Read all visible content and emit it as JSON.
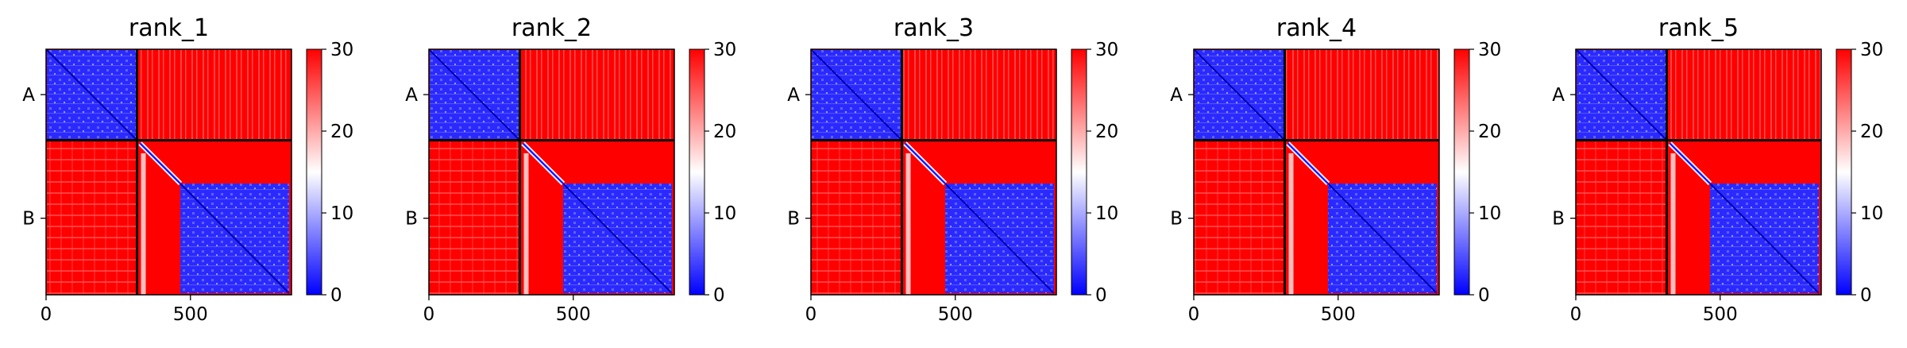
{
  "chart_data": {
    "type": "heatmap",
    "colormap": {
      "name": "bwr",
      "low": "#0000ff",
      "mid": "#ffffff",
      "high": "#ff0000"
    },
    "colorbar": {
      "range": [
        0,
        30
      ],
      "ticks": [
        0,
        10,
        20,
        30
      ]
    },
    "axis": {
      "range": [
        0,
        850
      ],
      "xticks": [
        0,
        500
      ],
      "yticks": [
        {
          "label": "A",
          "position": 157
        },
        {
          "label": "B",
          "position": 585
        }
      ]
    },
    "chain_boundary": 315,
    "domain_core_start": 465,
    "panels": [
      {
        "title": "rank_1"
      },
      {
        "title": "rank_2"
      },
      {
        "title": "rank_3"
      },
      {
        "title": "rank_4"
      },
      {
        "title": "rank_5"
      }
    ]
  }
}
